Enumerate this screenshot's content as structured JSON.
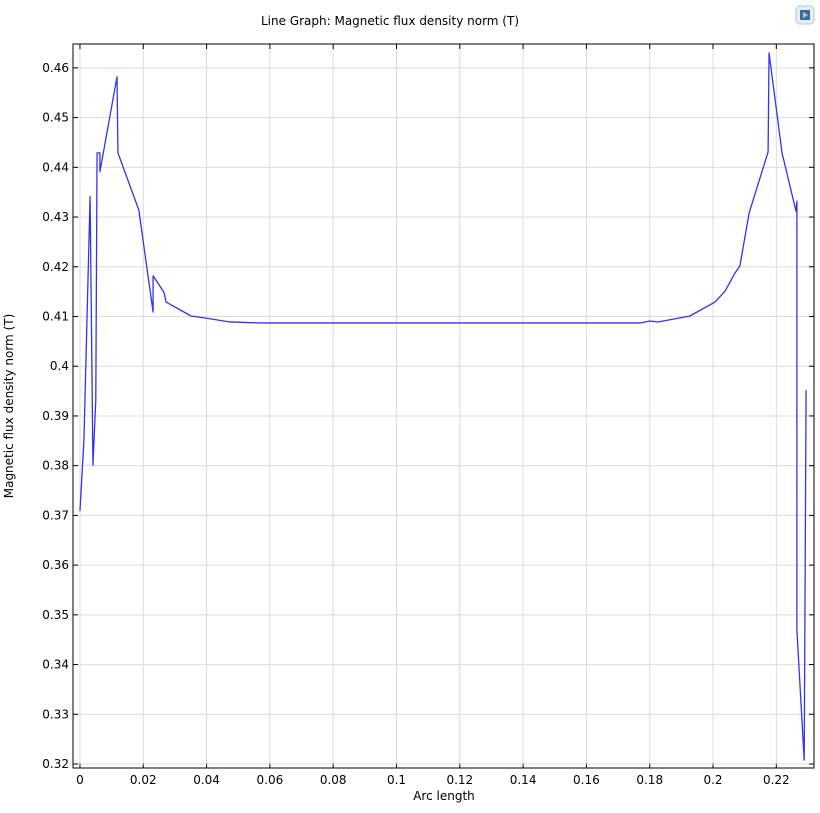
{
  "chart_data": {
    "type": "line",
    "title": "Line Graph: Magnetic flux density norm (T)",
    "xlabel": "Arc length",
    "ylabel": "Magnetic flux density norm (T)",
    "color": "#3333ee",
    "grid": true,
    "xlim": [
      -0.0022,
      0.2319
    ],
    "ylim": [
      0.3192,
      0.4648
    ],
    "xticks": [
      0,
      0.02,
      0.04,
      0.06,
      0.08,
      0.1,
      0.12,
      0.14,
      0.16,
      0.18,
      0.2,
      0.22
    ],
    "yticks": [
      0.32,
      0.33,
      0.34,
      0.35,
      0.36,
      0.37,
      0.38,
      0.39,
      0.4,
      0.41,
      0.42,
      0.43,
      0.44,
      0.45,
      0.46
    ],
    "x": [
      0,
      0.00126,
      0.0032,
      0.0041,
      0.005,
      0.0054,
      0.0063,
      0.0063,
      0.0117,
      0.012,
      0.0186,
      0.0231,
      0.0231,
      0.0265,
      0.0272,
      0.0351,
      0.0395,
      0.0474,
      0.0569,
      0.1011,
      0.1769,
      0.1801,
      0.1826,
      0.1927,
      0.2006,
      0.2038,
      0.207,
      0.2085,
      0.2114,
      0.2174,
      0.2177,
      0.2218,
      0.2262,
      0.2265,
      0.2265,
      0.2288,
      0.2294
    ],
    "values": [
      0.3709,
      0.3852,
      0.4341,
      0.3801,
      0.3932,
      0.4429,
      0.4429,
      0.4391,
      0.4582,
      0.4429,
      0.4314,
      0.4109,
      0.4182,
      0.4149,
      0.4129,
      0.4101,
      0.4097,
      0.4089,
      0.4087,
      0.4087,
      0.4087,
      0.4091,
      0.4089,
      0.4101,
      0.4129,
      0.4151,
      0.4188,
      0.4202,
      0.4308,
      0.4431,
      0.463,
      0.4429,
      0.4312,
      0.4332,
      0.3469,
      0.3208,
      0.3952
    ]
  }
}
